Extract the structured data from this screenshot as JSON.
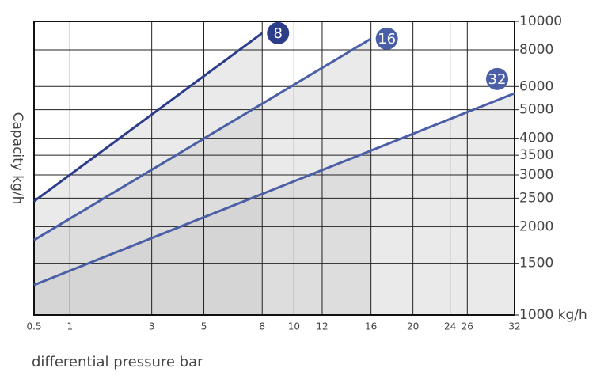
{
  "chart_data": {
    "type": "line",
    "x_label": "differential pressure bar",
    "y_label": "Capacity  kg/h",
    "xscale": "power",
    "xpower": 0.4,
    "yscale": "log",
    "xlim": [
      0.5,
      32
    ],
    "xticks": [
      0.5,
      1,
      3,
      5,
      8,
      10,
      12,
      16,
      20,
      24,
      26,
      32
    ],
    "ylim": [
      1000,
      10000
    ],
    "yticks": [
      {
        "value": 1000,
        "label": "1000 kg/h"
      },
      1500,
      2000,
      2500,
      3000,
      3500,
      4000,
      5000,
      6000,
      8000,
      10000
    ],
    "grid": true,
    "series": [
      {
        "name": "8",
        "color": "#2c3d8a",
        "x": [
          0.5,
          8
        ],
        "values": [
          2440,
          9120
        ]
      },
      {
        "name": "16",
        "color": "#4a5fa6",
        "x": [
          0.5,
          16
        ],
        "values": [
          1800,
          8730
        ]
      },
      {
        "name": "32",
        "color": "#4a5fa6",
        "x": [
          0.5,
          32
        ],
        "values": [
          1265,
          5690
        ]
      }
    ]
  }
}
